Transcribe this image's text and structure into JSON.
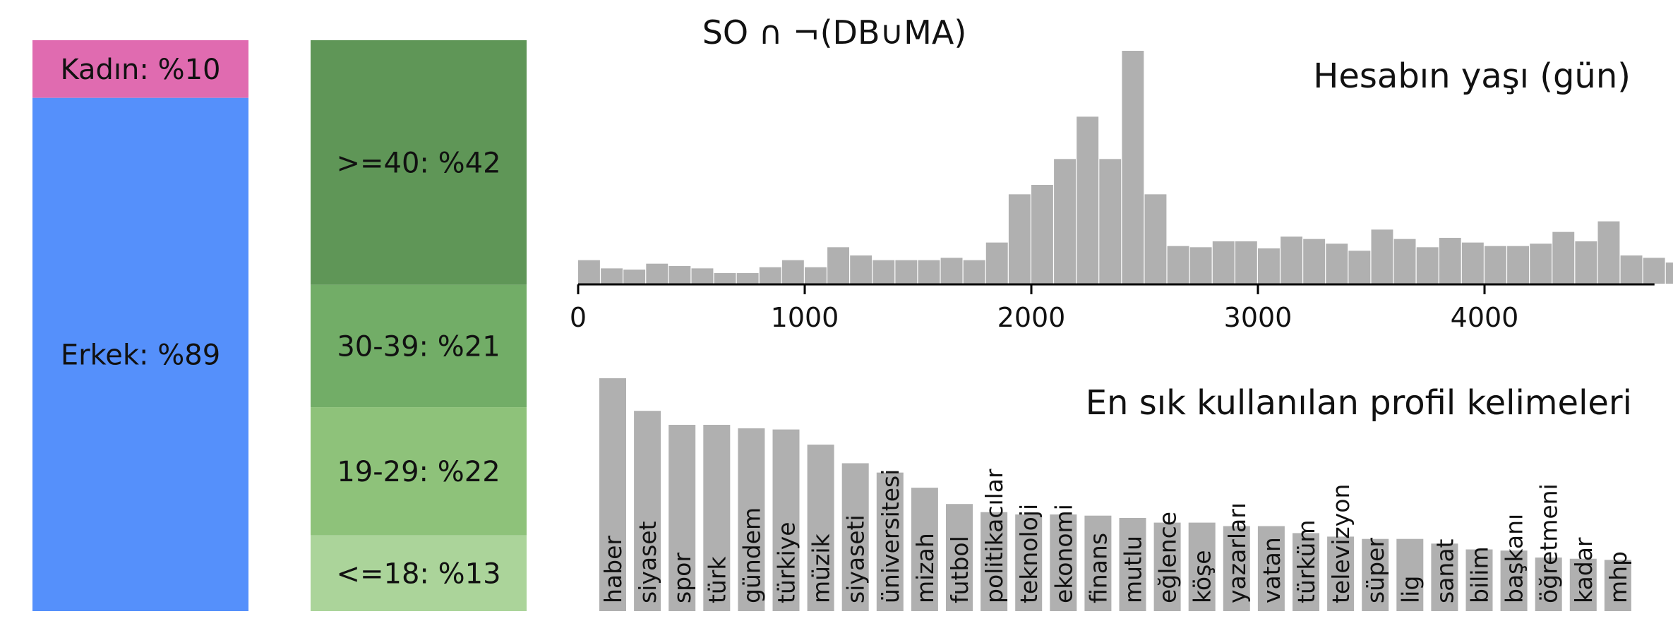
{
  "figure_title": "SO ∩ ¬(DB∪MA)",
  "colors": {
    "female": "#e06bb0",
    "male": "#5590fb",
    "age_40_plus": "#5f9657",
    "age_30_39": "#72ad67",
    "age_19_29": "#8ec27a",
    "age_18_minus": "#abd49a",
    "hist": "#b0b0b0",
    "words": "#b0b0b0"
  },
  "chart_data": [
    {
      "type": "bar",
      "subtype": "stacked-100",
      "segments": [
        {
          "label": "Kadın: %10",
          "value": 10,
          "color_key": "female"
        },
        {
          "label": "Erkek: %89",
          "value": 89,
          "color_key": "male"
        }
      ]
    },
    {
      "type": "bar",
      "subtype": "stacked-100",
      "segments": [
        {
          "label": ">=40: %42",
          "value": 42,
          "color_key": "age_40_plus"
        },
        {
          "label": "30-39: %21",
          "value": 21,
          "color_key": "age_30_39"
        },
        {
          "label": "19-29: %22",
          "value": 22,
          "color_key": "age_19_29"
        },
        {
          "label": "<=18: %13",
          "value": 13,
          "color_key": "age_18_minus"
        }
      ]
    },
    {
      "type": "bar",
      "subtype": "histogram",
      "title": "Hesabın yaşı (gün)",
      "bin_start": 0,
      "bin_width": 100,
      "xlim": [
        0,
        4750
      ],
      "xticks": [
        "0",
        "1000",
        "2000",
        "3000",
        "4000"
      ],
      "xtick_values": [
        0,
        1000,
        2000,
        3000,
        4000
      ],
      "values": [
        0.1,
        0.065,
        0.06,
        0.085,
        0.075,
        0.065,
        0.045,
        0.045,
        0.07,
        0.1,
        0.07,
        0.155,
        0.12,
        0.1,
        0.1,
        0.1,
        0.11,
        0.1,
        0.175,
        0.38,
        0.42,
        0.53,
        0.71,
        0.53,
        0.99,
        0.38,
        0.16,
        0.155,
        0.18,
        0.18,
        0.15,
        0.2,
        0.19,
        0.17,
        0.14,
        0.23,
        0.19,
        0.155,
        0.195,
        0.175,
        0.16,
        0.16,
        0.17,
        0.22,
        0.18,
        0.265,
        0.12,
        0.11,
        0.09
      ],
      "grid": false
    },
    {
      "type": "bar",
      "title": "En sık kullanılan profil kelimeleri",
      "categories": [
        "haber",
        "siyaset",
        "spor",
        "türk",
        "gündem",
        "türkiye",
        "müzik",
        "siyaseti",
        "üniversitesi",
        "mizah",
        "futbol",
        "politikacılar",
        "teknoloji",
        "ekonomi",
        "finans",
        "mutlu",
        "eğlence",
        "köşe",
        "yazarları",
        "vatan",
        "türküm",
        "televizyon",
        "süper",
        "lig",
        "sanat",
        "bilim",
        "başkanı",
        "öğretmeni",
        "kadar",
        "mhp"
      ],
      "values": [
        1.0,
        0.86,
        0.8,
        0.8,
        0.785,
        0.78,
        0.715,
        0.635,
        0.595,
        0.53,
        0.46,
        0.425,
        0.415,
        0.415,
        0.41,
        0.4,
        0.38,
        0.38,
        0.365,
        0.365,
        0.335,
        0.32,
        0.31,
        0.31,
        0.29,
        0.265,
        0.26,
        0.23,
        0.225,
        0.22
      ],
      "grid": false
    }
  ]
}
